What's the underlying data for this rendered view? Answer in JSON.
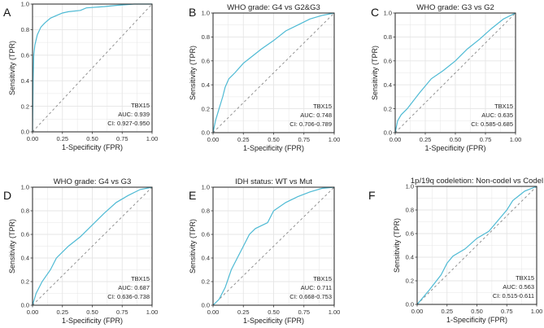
{
  "colors": {
    "curve": "#4EBAD4",
    "diagonal": "#888888",
    "grid": "#E5E5E5"
  },
  "chart_data": [
    {
      "type": "line",
      "letter": "A",
      "title": "",
      "xlabel": "1-Specificity (FPR)",
      "ylabel": "Sensitivity (TPR)",
      "xlim": [
        0,
        1
      ],
      "ylim": [
        0,
        1
      ],
      "grid": true,
      "xticks": [
        "0.00",
        "0.25",
        "0.50",
        "0.75",
        "1.00"
      ],
      "yticks": [
        "0.0",
        "0.2",
        "0.4",
        "0.6",
        "0.8",
        "1.0"
      ],
      "annotation": [
        "TBX15",
        "AUC: 0.939",
        "CI: 0.927-0.950"
      ],
      "x": [
        0,
        0.005,
        0.01,
        0.02,
        0.04,
        0.07,
        0.1,
        0.15,
        0.2,
        0.25,
        0.3,
        0.4,
        0.45,
        0.6,
        0.7,
        0.85,
        1
      ],
      "y": [
        0,
        0.4,
        0.6,
        0.68,
        0.76,
        0.82,
        0.85,
        0.89,
        0.91,
        0.93,
        0.94,
        0.95,
        0.97,
        0.98,
        0.99,
        1,
        1
      ]
    },
    {
      "type": "line",
      "letter": "B",
      "title": "WHO grade: G4 vs G2&G3",
      "xlabel": "1-Specificity (FPR)",
      "ylabel": "Sensitivity (TPR)",
      "xlim": [
        0,
        1
      ],
      "ylim": [
        0,
        1
      ],
      "grid": true,
      "xticks": [
        "0.00",
        "0.25",
        "0.50",
        "0.75",
        "1.00"
      ],
      "yticks": [
        "0.0",
        "0.2",
        "0.4",
        "0.6",
        "0.8",
        "1.0"
      ],
      "annotation": [
        "TBX15",
        "AUC: 0.748",
        "CI: 0.706-0.789"
      ],
      "x": [
        0,
        0.02,
        0.05,
        0.08,
        0.1,
        0.13,
        0.18,
        0.25,
        0.3,
        0.4,
        0.5,
        0.6,
        0.7,
        0.8,
        0.9,
        1
      ],
      "y": [
        0,
        0.1,
        0.2,
        0.3,
        0.38,
        0.45,
        0.5,
        0.58,
        0.62,
        0.7,
        0.77,
        0.85,
        0.9,
        0.95,
        0.98,
        1
      ]
    },
    {
      "type": "line",
      "letter": "C",
      "title": "WHO grade: G3 vs G2",
      "xlabel": "1-Specificity (FPR)",
      "ylabel": "Sensitivity (TPR)",
      "xlim": [
        0,
        1
      ],
      "ylim": [
        0,
        1
      ],
      "grid": true,
      "xticks": [
        "0.00",
        "0.25",
        "0.50",
        "0.75",
        "1.00"
      ],
      "yticks": [
        "0.0",
        "0.2",
        "0.4",
        "0.6",
        "0.8",
        "1.0"
      ],
      "annotation": [
        "TBX15",
        "AUC: 0.635",
        "CI: 0.585-0.685"
      ],
      "x": [
        0,
        0.02,
        0.05,
        0.1,
        0.2,
        0.3,
        0.4,
        0.5,
        0.6,
        0.7,
        0.8,
        0.9,
        1
      ],
      "y": [
        0,
        0.1,
        0.15,
        0.2,
        0.33,
        0.45,
        0.52,
        0.6,
        0.7,
        0.78,
        0.87,
        0.95,
        1
      ]
    },
    {
      "type": "line",
      "letter": "D",
      "title": "WHO grade: G4 vs G3",
      "xlabel": "1-Specificity (FPR)",
      "ylabel": "Sensitivity (TPR)",
      "xlim": [
        0,
        1
      ],
      "ylim": [
        0,
        1
      ],
      "grid": true,
      "xticks": [
        "0.00",
        "0.25",
        "0.50",
        "0.75",
        "1.00"
      ],
      "yticks": [
        "0.0",
        "0.2",
        "0.4",
        "0.6",
        "0.8",
        "1.0"
      ],
      "annotation": [
        "TBX15",
        "AUC: 0.687",
        "CI: 0.636-0.738"
      ],
      "x": [
        0,
        0.03,
        0.08,
        0.15,
        0.2,
        0.3,
        0.4,
        0.5,
        0.6,
        0.7,
        0.8,
        0.9,
        1
      ],
      "y": [
        0,
        0.1,
        0.2,
        0.3,
        0.4,
        0.5,
        0.58,
        0.68,
        0.78,
        0.87,
        0.93,
        0.98,
        1
      ]
    },
    {
      "type": "line",
      "letter": "E",
      "title": "IDH status: WT vs Mut",
      "xlabel": "1-Specificity (FPR)",
      "ylabel": "Sensitivity (TPR)",
      "xlim": [
        0,
        1
      ],
      "ylim": [
        0,
        1
      ],
      "grid": true,
      "xticks": [
        "0.00",
        "0.25",
        "0.50",
        "0.75",
        "1.00"
      ],
      "yticks": [
        "0.0",
        "0.2",
        "0.4",
        "0.6",
        "0.8",
        "1.0"
      ],
      "annotation": [
        "TBX15",
        "AUC: 0.711",
        "CI: 0.668-0.753"
      ],
      "x": [
        0,
        0.05,
        0.1,
        0.15,
        0.2,
        0.25,
        0.3,
        0.35,
        0.45,
        0.5,
        0.6,
        0.7,
        0.8,
        0.9,
        1
      ],
      "y": [
        0,
        0.05,
        0.15,
        0.3,
        0.4,
        0.5,
        0.6,
        0.65,
        0.7,
        0.8,
        0.87,
        0.92,
        0.96,
        0.99,
        1
      ]
    },
    {
      "type": "line",
      "letter": "F",
      "title": "1p/19q codeletion: Non-codel vs Codel",
      "xlabel": "1-Specificity (FPR)",
      "ylabel": "Sensitivity (TPR)",
      "xlim": [
        0,
        1
      ],
      "ylim": [
        0,
        1
      ],
      "grid": true,
      "xticks": [
        "0.00",
        "0.25",
        "0.50",
        "0.75",
        "1.00"
      ],
      "yticks": [
        "0.0",
        "0.2",
        "0.4",
        "0.6",
        "0.8",
        "1.0"
      ],
      "annotation": [
        "TBX15",
        "AUC: 0.563",
        "CI: 0.515-0.611"
      ],
      "x": [
        0,
        0.1,
        0.2,
        0.25,
        0.3,
        0.4,
        0.5,
        0.6,
        0.7,
        0.75,
        0.8,
        0.9,
        1
      ],
      "y": [
        0,
        0.12,
        0.25,
        0.35,
        0.41,
        0.47,
        0.56,
        0.62,
        0.74,
        0.8,
        0.88,
        0.96,
        1
      ]
    }
  ]
}
